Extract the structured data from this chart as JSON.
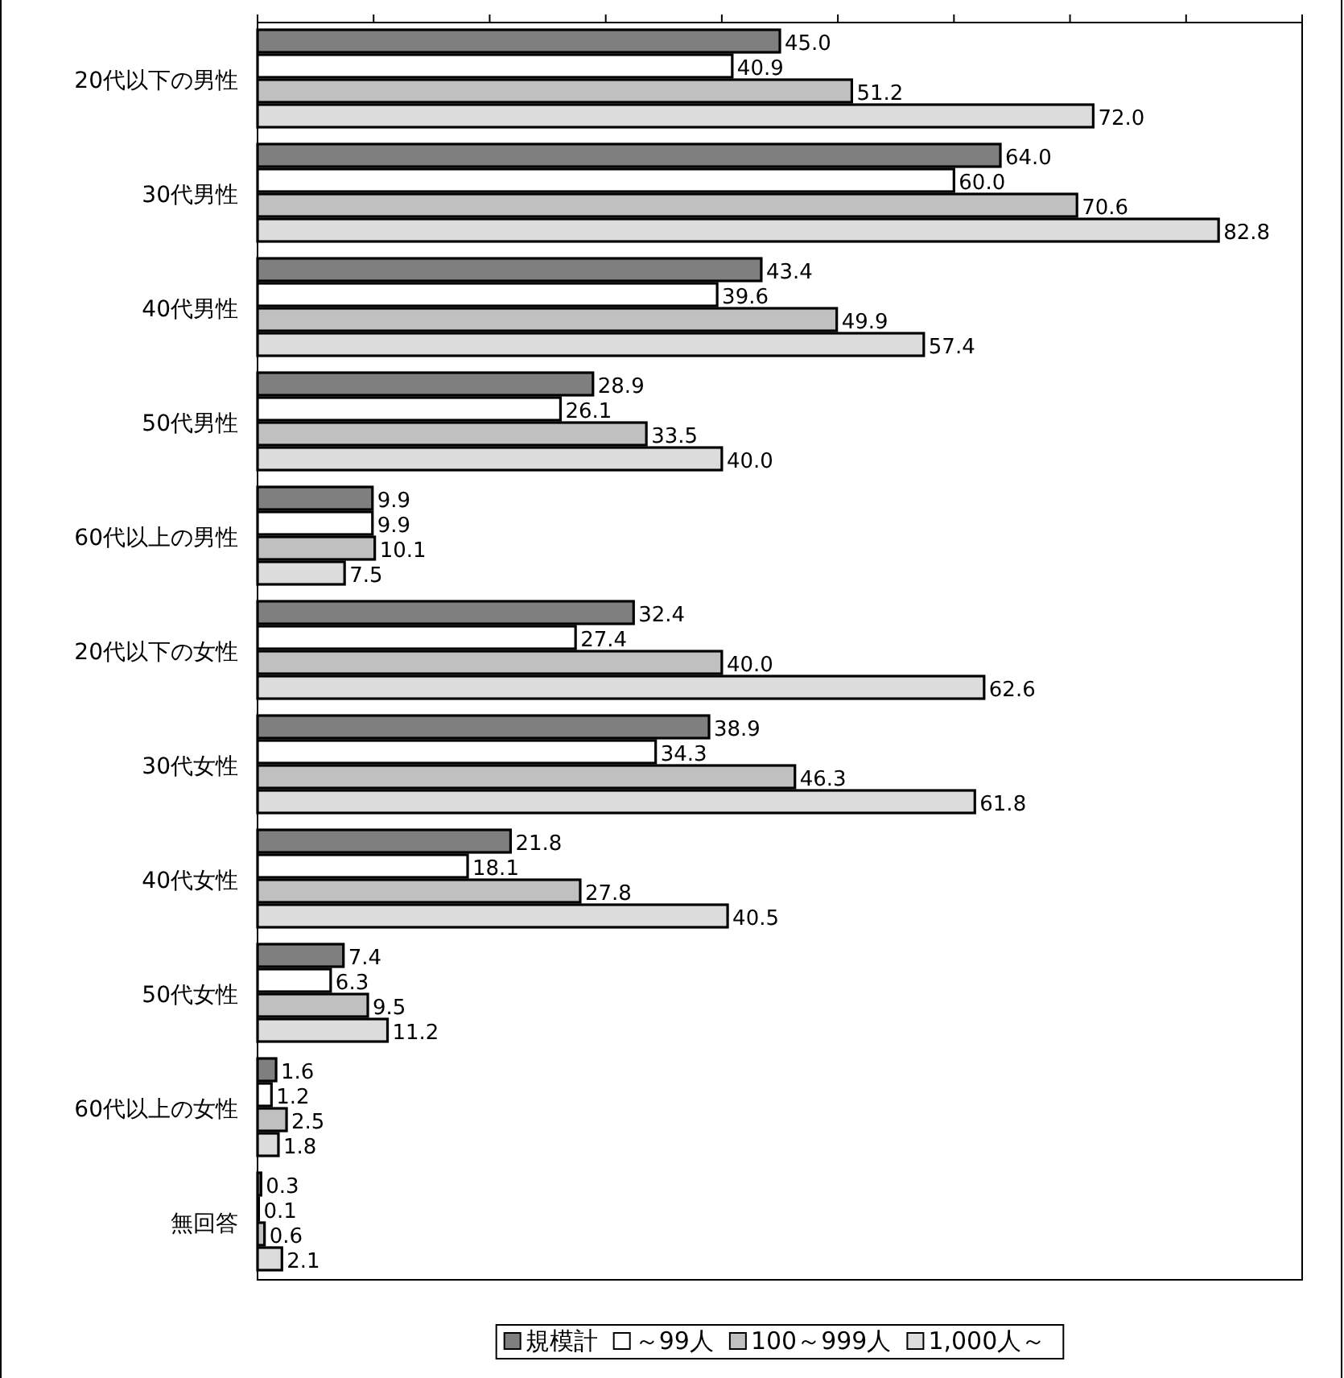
{
  "chart_data": {
    "type": "bar",
    "orientation": "horizontal",
    "categories": [
      "20代以下の男性",
      "30代男性",
      "40代男性",
      "50代男性",
      "60代以上の男性",
      "20代以下の女性",
      "30代女性",
      "40代女性",
      "50代女性",
      "60代以上の女性",
      "無回答"
    ],
    "series": [
      {
        "name": "規模計",
        "color": "#7f7f7f",
        "values": [
          45.0,
          64.0,
          43.4,
          28.9,
          9.9,
          32.4,
          38.9,
          21.8,
          7.4,
          1.6,
          0.3
        ],
        "value_labels": [
          "45.0",
          "64.0",
          "43.4",
          "28.9",
          "9.9",
          "32.4",
          "38.9",
          "21.8",
          "7.4",
          "1.6",
          "0.3"
        ]
      },
      {
        "name": "～99人",
        "color": "#ffffff",
        "values": [
          40.9,
          60.0,
          39.6,
          26.1,
          9.9,
          27.4,
          34.3,
          18.1,
          6.3,
          1.2,
          0.1
        ],
        "value_labels": [
          "40.9",
          "60.0",
          "39.6",
          "26.1",
          "9.9",
          "27.4",
          "34.3",
          "18.1",
          "6.3",
          "1.2",
          "0.1"
        ]
      },
      {
        "name": "100～999人",
        "color": "#c0c0c0",
        "values": [
          51.2,
          70.6,
          49.9,
          33.5,
          10.1,
          40.0,
          46.3,
          27.8,
          9.5,
          2.5,
          0.6
        ],
        "value_labels": [
          "51.2",
          "70.6",
          "49.9",
          "33.5",
          "10.1",
          "40.0",
          "46.3",
          "27.8",
          "9.5",
          "2.5",
          "0.6"
        ]
      },
      {
        "name": "1,000人～",
        "color": "#dcdcdc",
        "values": [
          72.0,
          82.8,
          57.4,
          40.0,
          7.5,
          62.6,
          61.8,
          40.5,
          11.2,
          1.8,
          2.1
        ],
        "value_labels": [
          "72.0",
          "82.8",
          "57.4",
          "40.0",
          "7.5",
          "62.6",
          "61.8",
          "40.5",
          "11.2",
          "1.8",
          "2.1"
        ]
      }
    ],
    "xlim": [
      0,
      90
    ],
    "xticks": [
      {
        "value": 0,
        "label": null
      },
      {
        "value": 10,
        "label": null
      },
      {
        "value": 20,
        "label": null
      },
      {
        "value": 30,
        "label": null
      },
      {
        "value": 40,
        "label": null
      },
      {
        "value": 50,
        "label": null
      },
      {
        "value": 60,
        "label": null
      },
      {
        "value": 70,
        "label": null
      },
      {
        "value": 80,
        "label": null
      },
      {
        "value": 90,
        "label": null
      }
    ],
    "grid": false,
    "legend": "bottom"
  }
}
